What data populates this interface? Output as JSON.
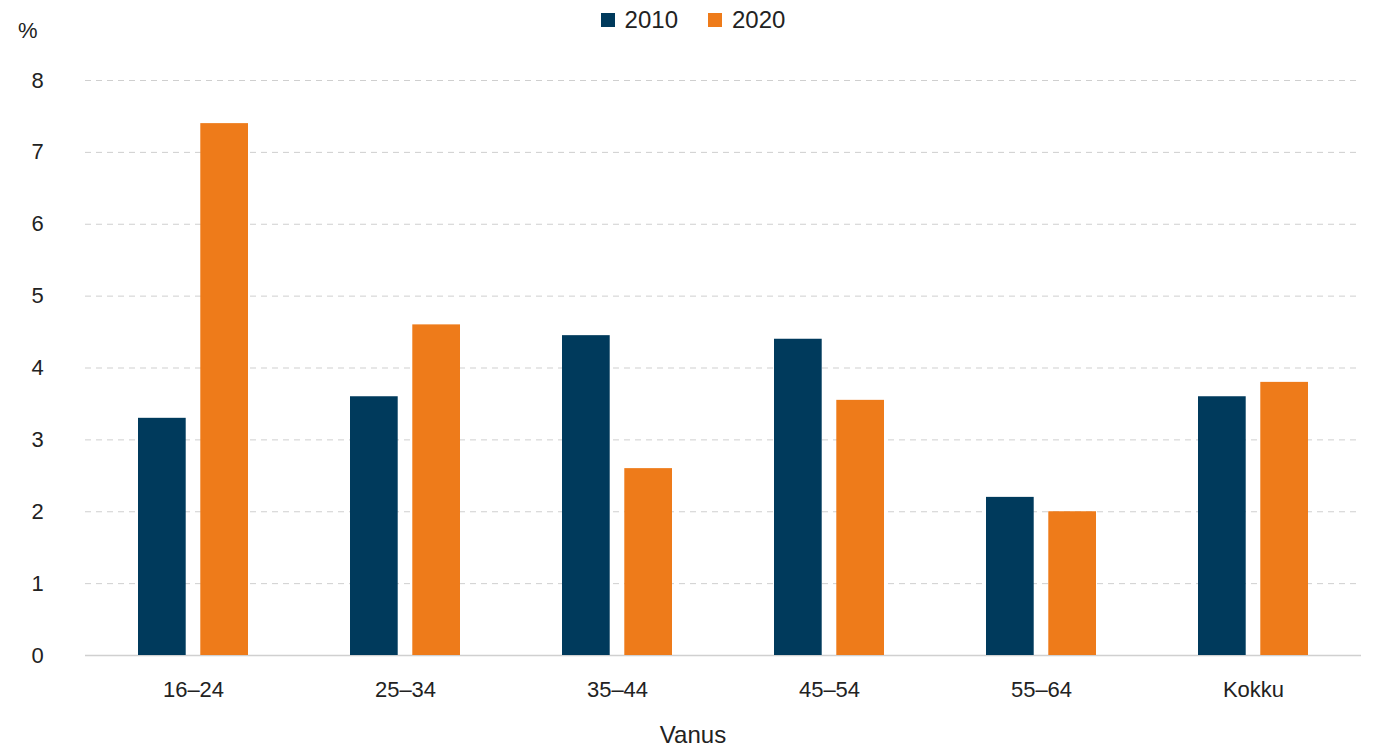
{
  "chart_data": {
    "type": "bar",
    "categories": [
      "16–24",
      "25–34",
      "35–44",
      "45–54",
      "55–64",
      "Kokku"
    ],
    "series": [
      {
        "name": "2010",
        "color": "#003a5c",
        "values": [
          3.3,
          3.6,
          4.45,
          4.4,
          2.2,
          3.6
        ]
      },
      {
        "name": "2020",
        "color": "#ee7b1a",
        "values": [
          7.4,
          4.6,
          2.6,
          3.55,
          2.0,
          3.8
        ]
      }
    ],
    "x_label": "Vanus",
    "y_label": "%",
    "ylim": [
      0,
      8
    ],
    "yticks": [
      0,
      1,
      2,
      3,
      4,
      5,
      6,
      7,
      8
    ],
    "grid": true,
    "legend": "top"
  }
}
